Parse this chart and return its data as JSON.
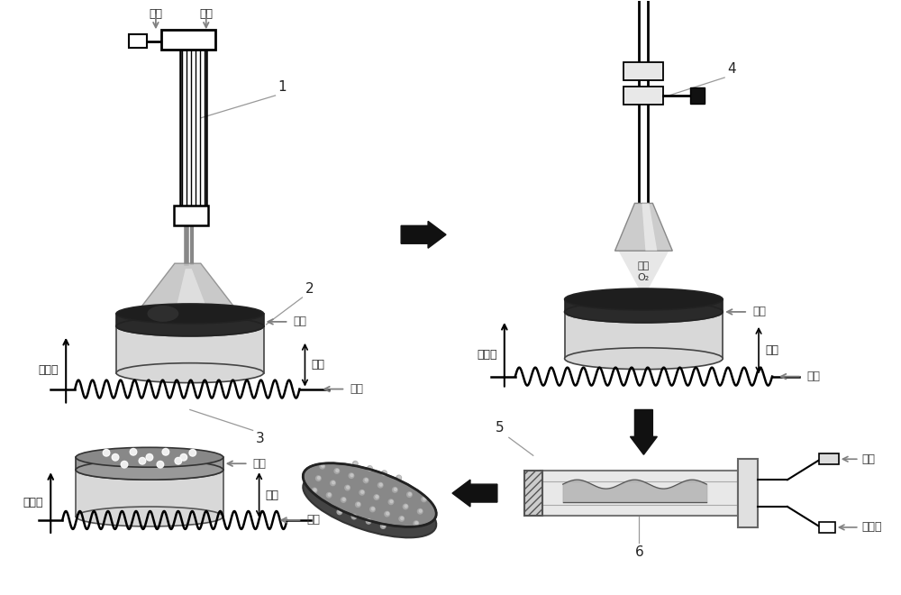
{
  "bg_color": "#ffffff",
  "labels": {
    "qing_qi": "氢气",
    "gao_ya": "高压",
    "yang_ji": "阳极",
    "yin_ji": "阴极",
    "dian_zi_shu": "电子束",
    "o_qi": "氧气",
    "o2": "O₂",
    "re_dian_ou": "热电偶",
    "num1": "1",
    "num2": "2",
    "num3": "3",
    "num4": "4",
    "num5": "5",
    "num6": "6"
  }
}
